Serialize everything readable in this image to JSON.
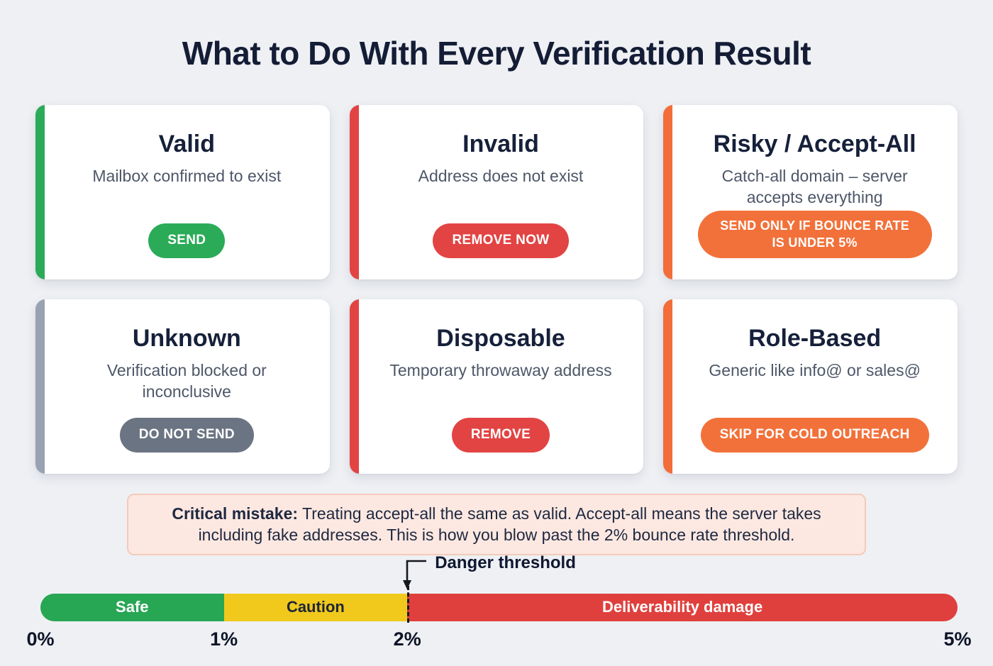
{
  "page": {
    "title": "What to Do With Every Verification Result",
    "background_color": "#eef0f4"
  },
  "cards": [
    {
      "title": "Valid",
      "description": "Mailbox confirmed to exist",
      "action": "SEND",
      "accent_color": "#2bab58",
      "action_color": "#2bab58"
    },
    {
      "title": "Invalid",
      "description": "Address does not exist",
      "action": "REMOVE NOW",
      "accent_color": "#e24443",
      "action_color": "#e24443"
    },
    {
      "title": "Risky / Accept-All",
      "description": "Catch-all domain – server accepts everything",
      "action": "SEND ONLY IF BOUNCE RATE IS UNDER 5%",
      "accent_color": "#f26d3a",
      "action_color": "#f2713a"
    },
    {
      "title": "Unknown",
      "description": "Verification blocked or inconclusive",
      "action": "DO NOT SEND",
      "accent_color": "#99a2b2",
      "action_color": "#6b7482"
    },
    {
      "title": "Disposable",
      "description": "Temporary throwaway address",
      "action": "REMOVE",
      "accent_color": "#e24443",
      "action_color": "#e24443"
    },
    {
      "title": "Role-Based",
      "description": "Generic like info@ or sales@",
      "action": "SKIP FOR COLD OUTREACH",
      "accent_color": "#f26d3a",
      "action_color": "#f2713a"
    }
  ],
  "callout": {
    "label": "Critical mistake:",
    "text": "Treating accept-all the same as valid. Accept-all means the server takes including fake addresses. This is how you blow past the 2% bounce rate threshold.",
    "background_color": "#fce8e1",
    "border_color": "#f5cabb"
  },
  "chart_data": {
    "type": "bar",
    "xlim": [
      0,
      5
    ],
    "segments": [
      {
        "label": "Safe",
        "start": 0,
        "end": 1,
        "color": "#27a653",
        "text_color": "#ffffff"
      },
      {
        "label": "Caution",
        "start": 1,
        "end": 2,
        "color": "#f0c91c",
        "text_color": "#1d2537"
      },
      {
        "label": "Deliverability damage",
        "start": 2,
        "end": 5,
        "color": "#df403d",
        "text_color": "#ffffff"
      }
    ],
    "ticks": [
      {
        "label": "0%",
        "value": 0
      },
      {
        "label": "1%",
        "value": 1
      },
      {
        "label": "2%",
        "value": 2
      },
      {
        "label": "5%",
        "value": 5
      }
    ],
    "annotation": {
      "label": "Danger threshold",
      "value": 2
    }
  }
}
